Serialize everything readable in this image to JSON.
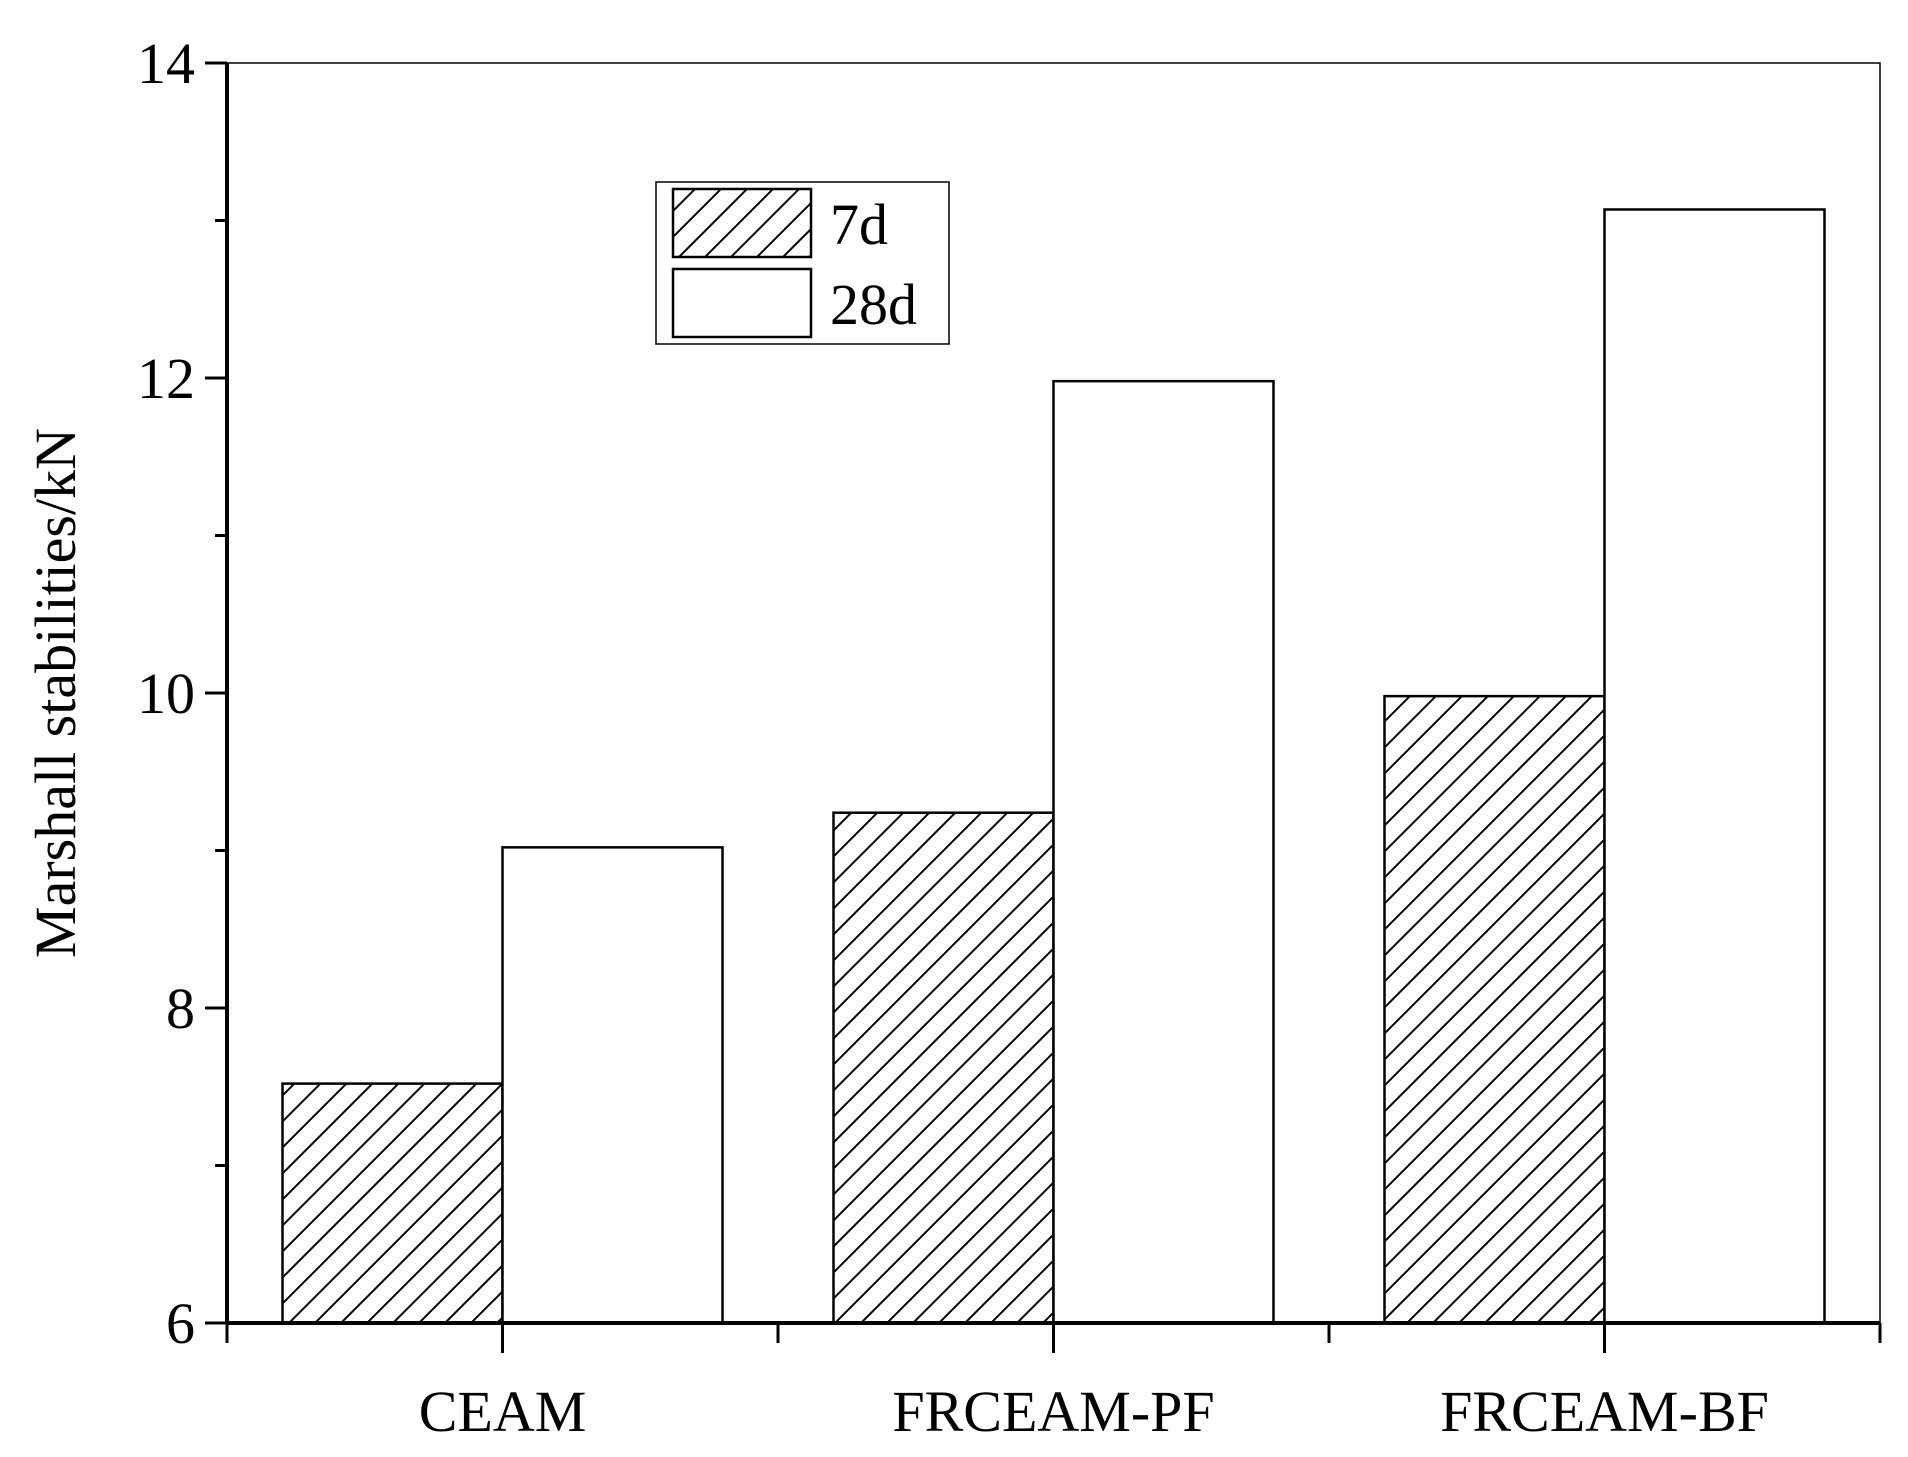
{
  "chart_data": {
    "type": "bar",
    "title": "",
    "xlabel": "",
    "ylabel": "Marshall stabilities/kN",
    "categories": [
      "CEAM",
      "FRCEAM-PF",
      "FRCEAM-BF"
    ],
    "series": [
      {
        "name": "7d",
        "values": [
          7.52,
          9.24,
          9.98
        ],
        "fill": "hatch"
      },
      {
        "name": "28d",
        "values": [
          9.02,
          11.98,
          13.07
        ],
        "fill": "white"
      }
    ],
    "ylim": [
      6,
      14
    ],
    "yticks": [
      6,
      8,
      10,
      12,
      14
    ],
    "yticks_text": [
      "6",
      "8",
      "10",
      "12",
      "14"
    ],
    "minor_yticks": [
      7,
      9,
      11,
      13
    ],
    "grid": false,
    "legend_position": "top-center",
    "colors": {
      "stroke": "#000000",
      "background": "#ffffff"
    }
  }
}
